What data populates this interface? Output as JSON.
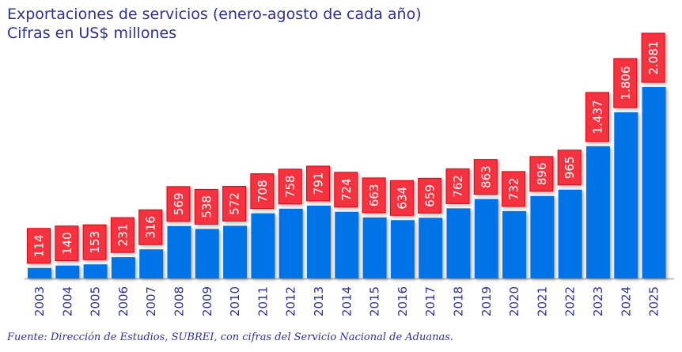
{
  "chart_data": {
    "type": "bar",
    "title": "Exportaciones de servicios (enero-agosto de cada año)",
    "subtitle": "Cifras en US$ millones",
    "xlabel": "",
    "ylabel": "",
    "categories": [
      "2003",
      "2004",
      "2005",
      "2006",
      "2007",
      "2008",
      "2009",
      "2010",
      "2011",
      "2012",
      "2013",
      "2014",
      "2015",
      "2016",
      "2017",
      "2018",
      "2019",
      "2020",
      "2021",
      "2022",
      "2023",
      "2024",
      "2025"
    ],
    "values": [
      114,
      140,
      153,
      231,
      316,
      569,
      538,
      572,
      708,
      758,
      791,
      724,
      663,
      634,
      659,
      762,
      863,
      732,
      896,
      965,
      1437,
      1806,
      2081
    ],
    "data_labels": [
      "114",
      "140",
      "153",
      "231",
      "316",
      "569",
      "538",
      "572",
      "708",
      "758",
      "791",
      "724",
      "663",
      "634",
      "659",
      "762",
      "863",
      "732",
      "896",
      "965",
      "1.437",
      "1.806",
      "2.081"
    ],
    "ylim": [
      0,
      2081
    ],
    "grid": false,
    "colors": {
      "bar": "#0073E6",
      "label_bg": "#F5333F",
      "label_border": "#E8000B",
      "text": "#2E3192",
      "axis": "#BFBFBF"
    }
  },
  "footer": "Fuente: Dirección de Estudios, SUBREI, con cifras del Servicio Nacional de Aduanas."
}
